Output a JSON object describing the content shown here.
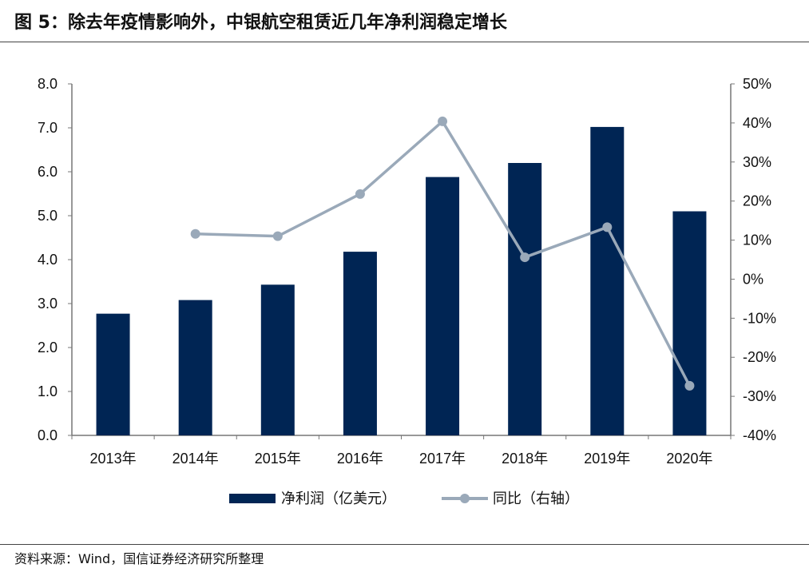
{
  "header": {
    "title": "图 5：除去年疫情影响外，中银航空租赁近几年净利润稳定增长"
  },
  "footer": {
    "source": "资料来源：Wind，国信证券经济研究所整理"
  },
  "colors": {
    "bar": "#002554",
    "line": "#9aa9b9",
    "axis": "#777777"
  },
  "chart_data": {
    "type": "bar",
    "categories": [
      "2013年",
      "2014年",
      "2015年",
      "2016年",
      "2017年",
      "2018年",
      "2019年",
      "2020年"
    ],
    "series": [
      {
        "name": "净利润（亿美元）",
        "type": "bar",
        "axis": "left",
        "values": [
          2.77,
          3.08,
          3.43,
          4.18,
          5.88,
          6.2,
          7.02,
          5.1
        ]
      },
      {
        "name": "同比（右轴）",
        "type": "line",
        "axis": "right",
        "values": [
          null,
          11.6,
          11.0,
          21.8,
          40.4,
          5.6,
          13.3,
          -27.3
        ]
      }
    ],
    "y_left": {
      "min": 0,
      "max": 8,
      "ticks": [
        "0.0",
        "1.0",
        "2.0",
        "3.0",
        "4.0",
        "5.0",
        "6.0",
        "7.0",
        "8.0"
      ]
    },
    "y_right": {
      "min": -40,
      "max": 50,
      "ticks": [
        "-40%",
        "-30%",
        "-20%",
        "-10%",
        "0%",
        "10%",
        "20%",
        "30%",
        "40%",
        "50%"
      ]
    },
    "legend_position": "bottom",
    "grid": false
  }
}
